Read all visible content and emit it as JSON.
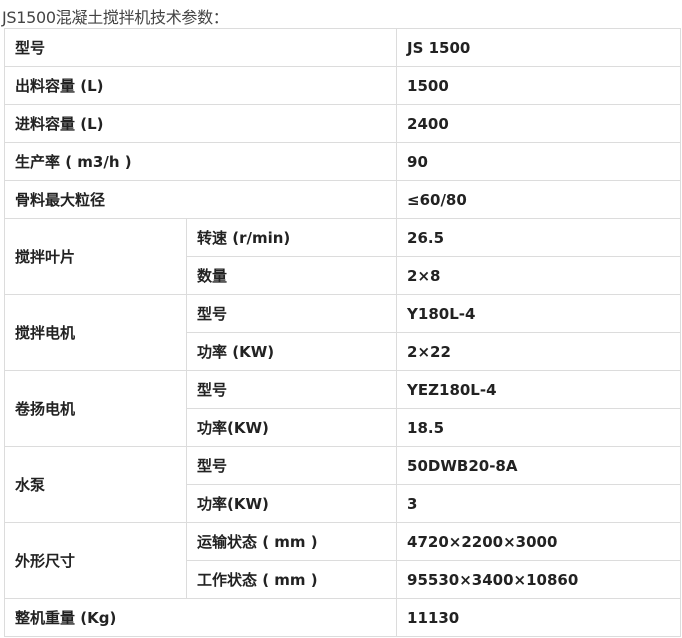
{
  "title": "JS1500混凝土搅拌机技术参数：",
  "table": [
    {
      "label": "型号",
      "value": "JS 1500"
    },
    {
      "label": "出料容量 (L)",
      "value": "1500"
    },
    {
      "label": "进料容量 (L)",
      "value": "2400"
    },
    {
      "label": "生产率 ( m3/h )",
      "value": "90"
    },
    {
      "label": "骨料最大粒径",
      "value": "≤60/80"
    },
    {
      "label": "搅拌叶片",
      "sub": [
        {
          "label": "转速 (r/min)",
          "value": "26.5"
        },
        {
          "label": "数量",
          "value": "2×8"
        }
      ]
    },
    {
      "label": "搅拌电机",
      "sub": [
        {
          "label": "型号",
          "value": "Y180L-4"
        },
        {
          "label": "功率 (KW)",
          "value": "2×22"
        }
      ]
    },
    {
      "label": "卷扬电机",
      "sub": [
        {
          "label": "型号",
          "value": "YEZ180L-4"
        },
        {
          "label": "功率(KW)",
          "value": "18.5"
        }
      ]
    },
    {
      "label": "水泵",
      "sub": [
        {
          "label": "型号",
          "value": "50DWB20-8A"
        },
        {
          "label": "功率(KW)",
          "value": " 3"
        }
      ]
    },
    {
      "label": "外形尺寸",
      "sub": [
        {
          "label": "运输状态 ( mm )",
          "value": "4720×2200×3000"
        },
        {
          "label": "工作状态 ( mm )",
          "value": "95530×3400×10860"
        }
      ]
    },
    {
      "label": "整机重量 (Kg)",
      "value": "11130"
    }
  ]
}
